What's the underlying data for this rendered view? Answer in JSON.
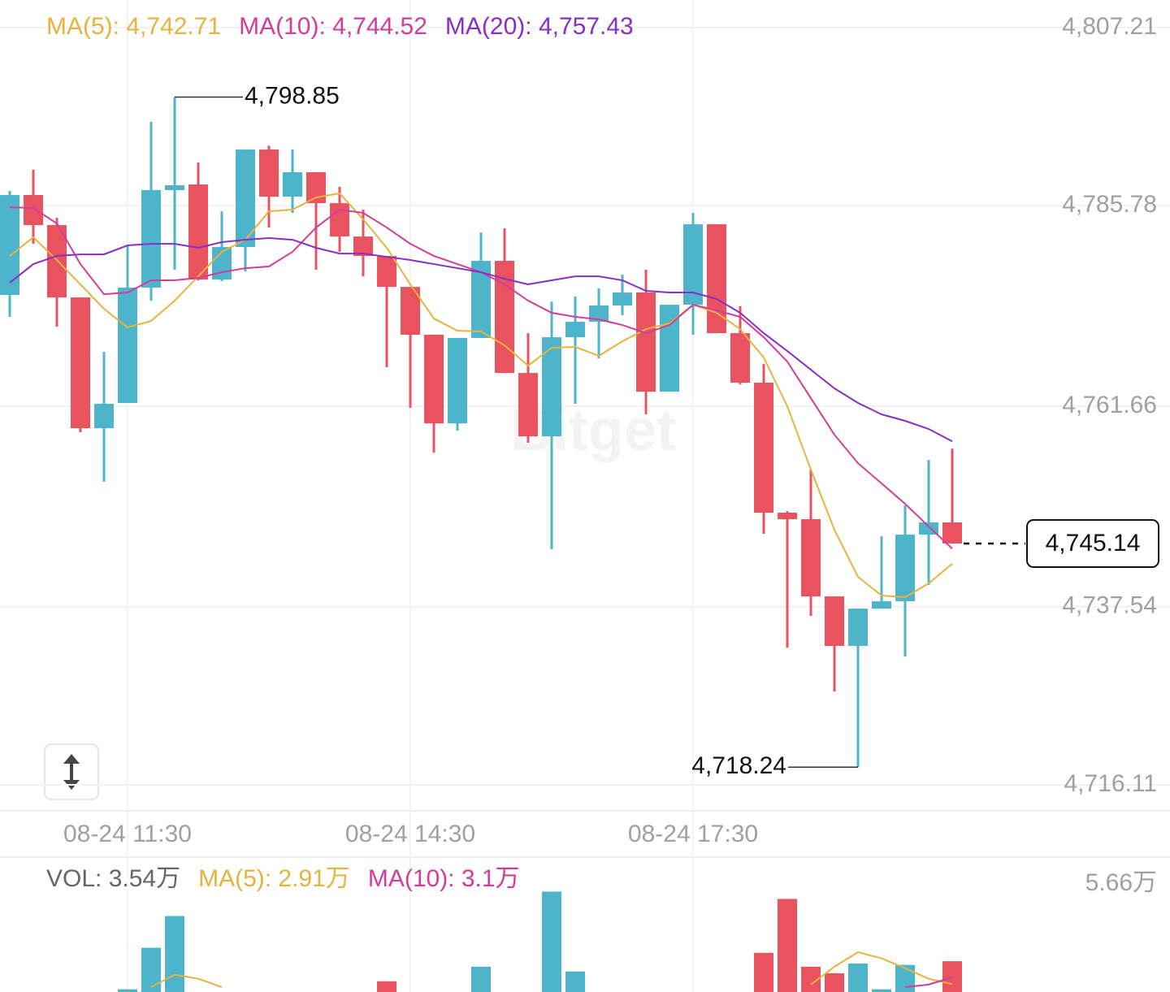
{
  "chart_data": [
    {
      "type": "candlestick",
      "watermark": "Bitget",
      "up_color": "#4db4cc",
      "down_color": "#e9525f",
      "categories": [
        null,
        null,
        null,
        null,
        null,
        "08-24 11:30",
        null,
        null,
        null,
        null,
        null,
        null,
        null,
        null,
        null,
        null,
        null,
        "08-24 14:30",
        null,
        null,
        null,
        null,
        null,
        null,
        null,
        null,
        null,
        null,
        null,
        "08-24 17:30",
        null,
        null,
        null,
        null,
        null,
        null,
        null,
        null,
        null,
        null,
        null
      ],
      "open": [
        4775.05,
        4787.07,
        4783.45,
        4774.75,
        4759.02,
        4762.05,
        4775.93,
        4787.66,
        4788.34,
        4776.9,
        4780.81,
        4792.54,
        4786.87,
        4789.81,
        4786.09,
        4782.08,
        4779.74,
        4776.02,
        4770.26,
        4759.6,
        4769.87,
        4779.15,
        4765.66,
        4758.04,
        4769.96,
        4771.82,
        4773.78,
        4775.34,
        4763.41,
        4773.87,
        4783.55,
        4770.45,
        4764.49,
        4748.85,
        4748.07,
        4738.78,
        4732.82,
        4737.31,
        4738.19,
        4746.21,
        4747.68
      ],
      "high": [
        4787.56,
        4790.1,
        4784.33,
        4774.75,
        4768.2,
        4781.01,
        4795.87,
        4798.85,
        4790.98,
        4785.11,
        4792.54,
        4793.0,
        4792.54,
        4789.81,
        4788.05,
        4785.31,
        4779.74,
        4776.02,
        4770.26,
        4769.87,
        4782.57,
        4783.06,
        4770.45,
        4774.26,
        4774.85,
        4775.83,
        4777.49,
        4778.08,
        4773.87,
        4784.92,
        4783.55,
        4773.68,
        4766.74,
        4749.04,
        4754.03,
        4738.78,
        4737.31,
        4746.01,
        4749.73,
        4755.2,
        4756.57
      ],
      "low": [
        4772.41,
        4781.2,
        4771.23,
        4758.53,
        4752.56,
        4762.05,
        4774.36,
        4778.08,
        4776.81,
        4776.71,
        4777.88,
        4783.16,
        4784.92,
        4778.08,
        4780.23,
        4777.29,
        4766.35,
        4761.46,
        4756.08,
        4758.72,
        4769.87,
        4765.66,
        4757.26,
        4744.45,
        4761.95,
        4767.42,
        4772.6,
        4760.68,
        4763.41,
        4770.26,
        4770.45,
        4764.29,
        4746.31,
        4732.62,
        4736.44,
        4727.34,
        4718.24,
        4737.31,
        4731.55,
        4740.15,
        4745.14
      ],
      "close": [
        4787.07,
        4783.45,
        4774.75,
        4759.02,
        4761.95,
        4775.93,
        4787.66,
        4788.24,
        4776.9,
        4780.81,
        4792.54,
        4786.87,
        4789.81,
        4786.09,
        4782.08,
        4779.74,
        4776.02,
        4770.26,
        4759.6,
        4769.87,
        4779.15,
        4765.66,
        4758.04,
        4769.96,
        4771.82,
        4773.78,
        4775.34,
        4763.41,
        4773.87,
        4783.55,
        4770.45,
        4764.49,
        4748.85,
        4748.07,
        4738.78,
        4732.82,
        4737.31,
        4738.19,
        4746.21,
        4747.68,
        4745.14
      ],
      "series": [
        {
          "name": "MA(5): 4,742.71",
          "color": "#e6b43c",
          "values": [
            4779.74,
            4781.99,
            4779.25,
            4776.32,
            4773.38,
            4771.14,
            4771.92,
            4774.36,
            4777.29,
            4780.23,
            4781.69,
            4785.11,
            4785.31,
            4786.78,
            4787.27,
            4784.14,
            4780.72,
            4776.32,
            4772.21,
            4770.75,
            4770.65,
            4768.99,
            4766.54,
            4768.69,
            4768.79,
            4767.72,
            4769.47,
            4770.94,
            4771.63,
            4773.87,
            4772.9,
            4770.94,
            4767.52,
            4761.65,
            4754.03,
            4746.8,
            4741.13,
            4738.88,
            4738.68,
            4740.35,
            4742.71
          ]
        },
        {
          "name": "MA(10): 4,744.52",
          "color": "#d23c9a",
          "values": [
            4785.6,
            4785.51,
            4783.65,
            4778.76,
            4775.14,
            4775.34,
            4776.81,
            4776.81,
            4777.1,
            4777.78,
            4778.27,
            4778.47,
            4780.23,
            4783.16,
            4785.31,
            4784.92,
            4783.16,
            4781.2,
            4779.74,
            4778.76,
            4777.78,
            4776.32,
            4774.36,
            4772.9,
            4772.41,
            4772.11,
            4771.43,
            4770.45,
            4771.43,
            4773.87,
            4773.19,
            4772.41,
            4769.96,
            4767.03,
            4762.63,
            4758.23,
            4754.81,
            4752.37,
            4749.92,
            4747.19,
            4744.52
          ]
        },
        {
          "name": "MA(20): 4,757.43",
          "color": "#8a2fc6",
          "values": [
            4776.51,
            4778.76,
            4779.74,
            4779.93,
            4779.93,
            4781.01,
            4781.2,
            4781.2,
            4780.72,
            4781.4,
            4781.69,
            4781.89,
            4781.69,
            4780.72,
            4780.03,
            4780.03,
            4779.64,
            4779.25,
            4778.76,
            4778.27,
            4777.78,
            4777.0,
            4776.32,
            4776.81,
            4777.29,
            4777.29,
            4776.81,
            4775.54,
            4775.34,
            4775.34,
            4774.56,
            4772.9,
            4770.45,
            4768.3,
            4766.05,
            4763.81,
            4762.05,
            4760.68,
            4759.9,
            4758.92,
            4757.43
          ]
        }
      ],
      "ylim": [
        4716.11,
        4807.21
      ],
      "yticks": [
        {
          "value": 4716.11,
          "label": "4,716.11"
        },
        {
          "value": 4737.54,
          "label": "4,737.54"
        },
        {
          "value": 4761.66,
          "label": "4,761.66"
        },
        {
          "value": 4785.78,
          "label": "4,785.78"
        },
        {
          "value": 4807.21,
          "label": "4,807.21"
        }
      ],
      "annotations": [
        {
          "value": 4798.85,
          "label": "4,798.85"
        },
        {
          "value": 4718.24,
          "label": "4,718.24"
        }
      ],
      "last_price": {
        "value": 4745.14,
        "label": "4,745.14"
      },
      "grid": true
    },
    {
      "type": "bar",
      "name": "VOL: 3.54万",
      "values": [
        null,
        null,
        null,
        null,
        null,
        2.77,
        3.91,
        4.78,
        null,
        null,
        null,
        null,
        null,
        null,
        null,
        null,
        2.99,
        null,
        null,
        null,
        3.39,
        null,
        null,
        5.45,
        3.26,
        null,
        null,
        null,
        null,
        null,
        null,
        null,
        3.77,
        5.25,
        3.39,
        3.21,
        3.48,
        2.77,
        3.44,
        null,
        3.54
      ],
      "series": [
        {
          "name": "MA(5): 2.91万",
          "color": "#e6b43c",
          "values": [
            null,
            null,
            null,
            null,
            null,
            null,
            2.83,
            3.17,
            3.06,
            2.83,
            null,
            null,
            null,
            null,
            null,
            null,
            null,
            null,
            null,
            null,
            null,
            null,
            null,
            null,
            null,
            null,
            null,
            null,
            null,
            null,
            null,
            null,
            null,
            null,
            2.9,
            3.39,
            3.79,
            3.62,
            3.35,
            3.06,
            2.91
          ]
        },
        {
          "name": "MA(10): 3.1万",
          "color": "#d23c9a",
          "values": [
            null,
            null,
            null,
            null,
            null,
            null,
            null,
            null,
            null,
            null,
            null,
            null,
            null,
            null,
            null,
            null,
            null,
            null,
            null,
            null,
            null,
            null,
            null,
            null,
            null,
            null,
            null,
            null,
            null,
            null,
            null,
            null,
            null,
            null,
            null,
            null,
            null,
            null,
            2.83,
            2.9,
            3.1
          ]
        }
      ],
      "ylim": [
        0,
        5.66
      ],
      "yticks": [
        {
          "value": 5.66,
          "label": "5.66万"
        }
      ]
    }
  ]
}
